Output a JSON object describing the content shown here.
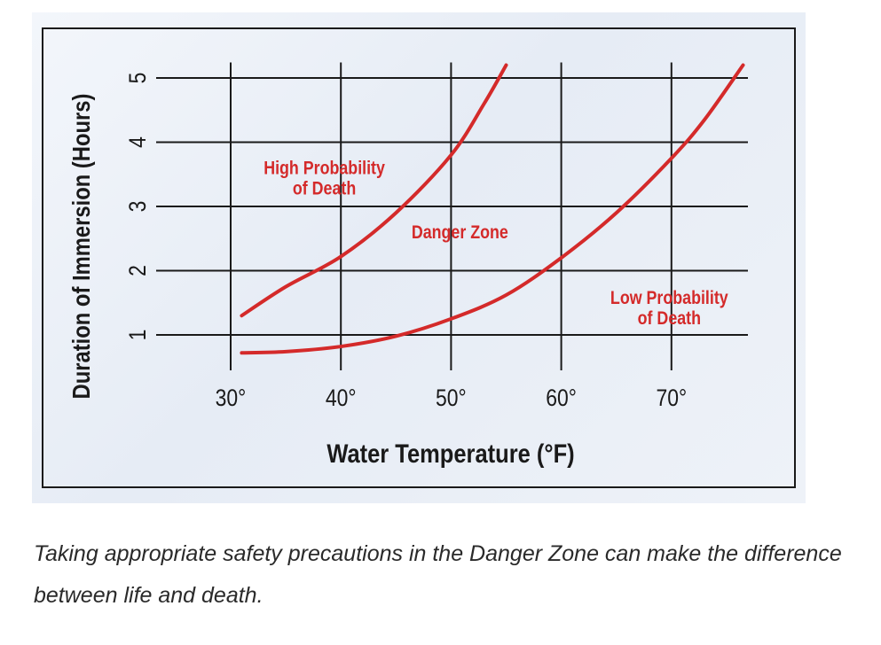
{
  "chart_data": {
    "type": "line",
    "xlabel": "Water Temperature (°F)",
    "ylabel": "Duration of Immersion (Hours)",
    "x_ticks": [
      {
        "value": 30,
        "label": "30°"
      },
      {
        "value": 40,
        "label": "40°"
      },
      {
        "value": 50,
        "label": "50°"
      },
      {
        "value": 60,
        "label": "60°"
      },
      {
        "value": 70,
        "label": "70°"
      }
    ],
    "y_ticks": [
      {
        "value": 1,
        "label": "1"
      },
      {
        "value": 2,
        "label": "2"
      },
      {
        "value": 3,
        "label": "3"
      },
      {
        "value": 4,
        "label": "4"
      },
      {
        "value": 5,
        "label": "5"
      }
    ],
    "xlim": [
      30,
      77
    ],
    "ylim": [
      0.6,
      5.2
    ],
    "grid": true,
    "line_color": "#d42a2a",
    "series": [
      {
        "points": [
          [
            31,
            1.3
          ],
          [
            35,
            1.75
          ],
          [
            40,
            2.22
          ],
          [
            45,
            2.9
          ],
          [
            50,
            3.8
          ],
          [
            53,
            4.6
          ],
          [
            55,
            5.2
          ]
        ]
      },
      {
        "points": [
          [
            31,
            0.72
          ],
          [
            35,
            0.74
          ],
          [
            40,
            0.82
          ],
          [
            45,
            0.98
          ],
          [
            50,
            1.25
          ],
          [
            55,
            1.62
          ],
          [
            60,
            2.2
          ],
          [
            65,
            2.9
          ],
          [
            70,
            3.75
          ],
          [
            73,
            4.35
          ],
          [
            76.5,
            5.2
          ]
        ]
      }
    ],
    "annotations": [
      {
        "id": "high",
        "lines": [
          "High Probability",
          "of Death"
        ],
        "x": 38.5,
        "y": 3.5
      },
      {
        "id": "danger",
        "lines": [
          "Danger Zone"
        ],
        "x": 50.8,
        "y": 2.5
      },
      {
        "id": "low",
        "lines": [
          "Low Probability",
          "of Death"
        ],
        "x": 69.8,
        "y": 1.48
      }
    ]
  },
  "caption": "Taking appropriate safety precautions in the Danger Zone can make the difference between life and death."
}
